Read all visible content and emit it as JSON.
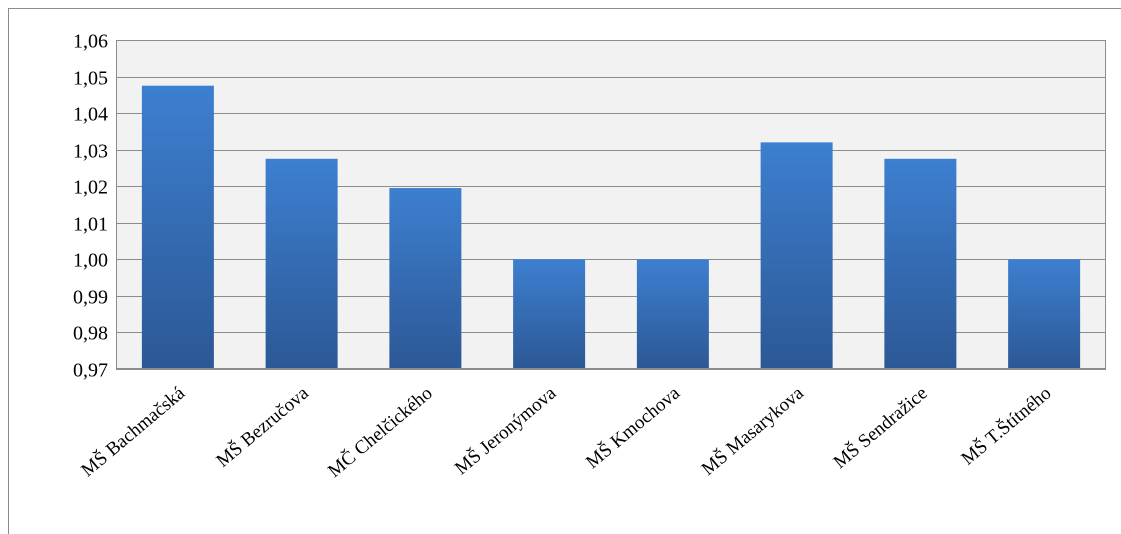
{
  "chart_data": {
    "type": "bar",
    "categories": [
      "MŠ Bachmačská",
      "MŠ Bezručova",
      "MČ Chelčického",
      "MŠ Jeronýmova",
      "MŠ Kmochova",
      "MŠ Masarykova",
      "MŠ Sendražice",
      "MŠ T.Štítného"
    ],
    "values": [
      1.0475,
      1.0275,
      1.0195,
      1.0,
      1.0,
      1.032,
      1.0275,
      1.0
    ],
    "yticks": [
      "0,97",
      "0,98",
      "0,99",
      "1,00",
      "1,01",
      "1,02",
      "1,03",
      "1,04",
      "1,05",
      "1,06"
    ],
    "ylim": [
      0.97,
      1.06
    ],
    "title": "",
    "xlabel": "",
    "ylabel": "",
    "grid": true,
    "legend": "none",
    "colors": {
      "bar_top": "#3d7fd0",
      "bar_bottom": "#2c5895",
      "plot_bg": "#f2f2f2",
      "grid": "#8c8c8c"
    }
  }
}
